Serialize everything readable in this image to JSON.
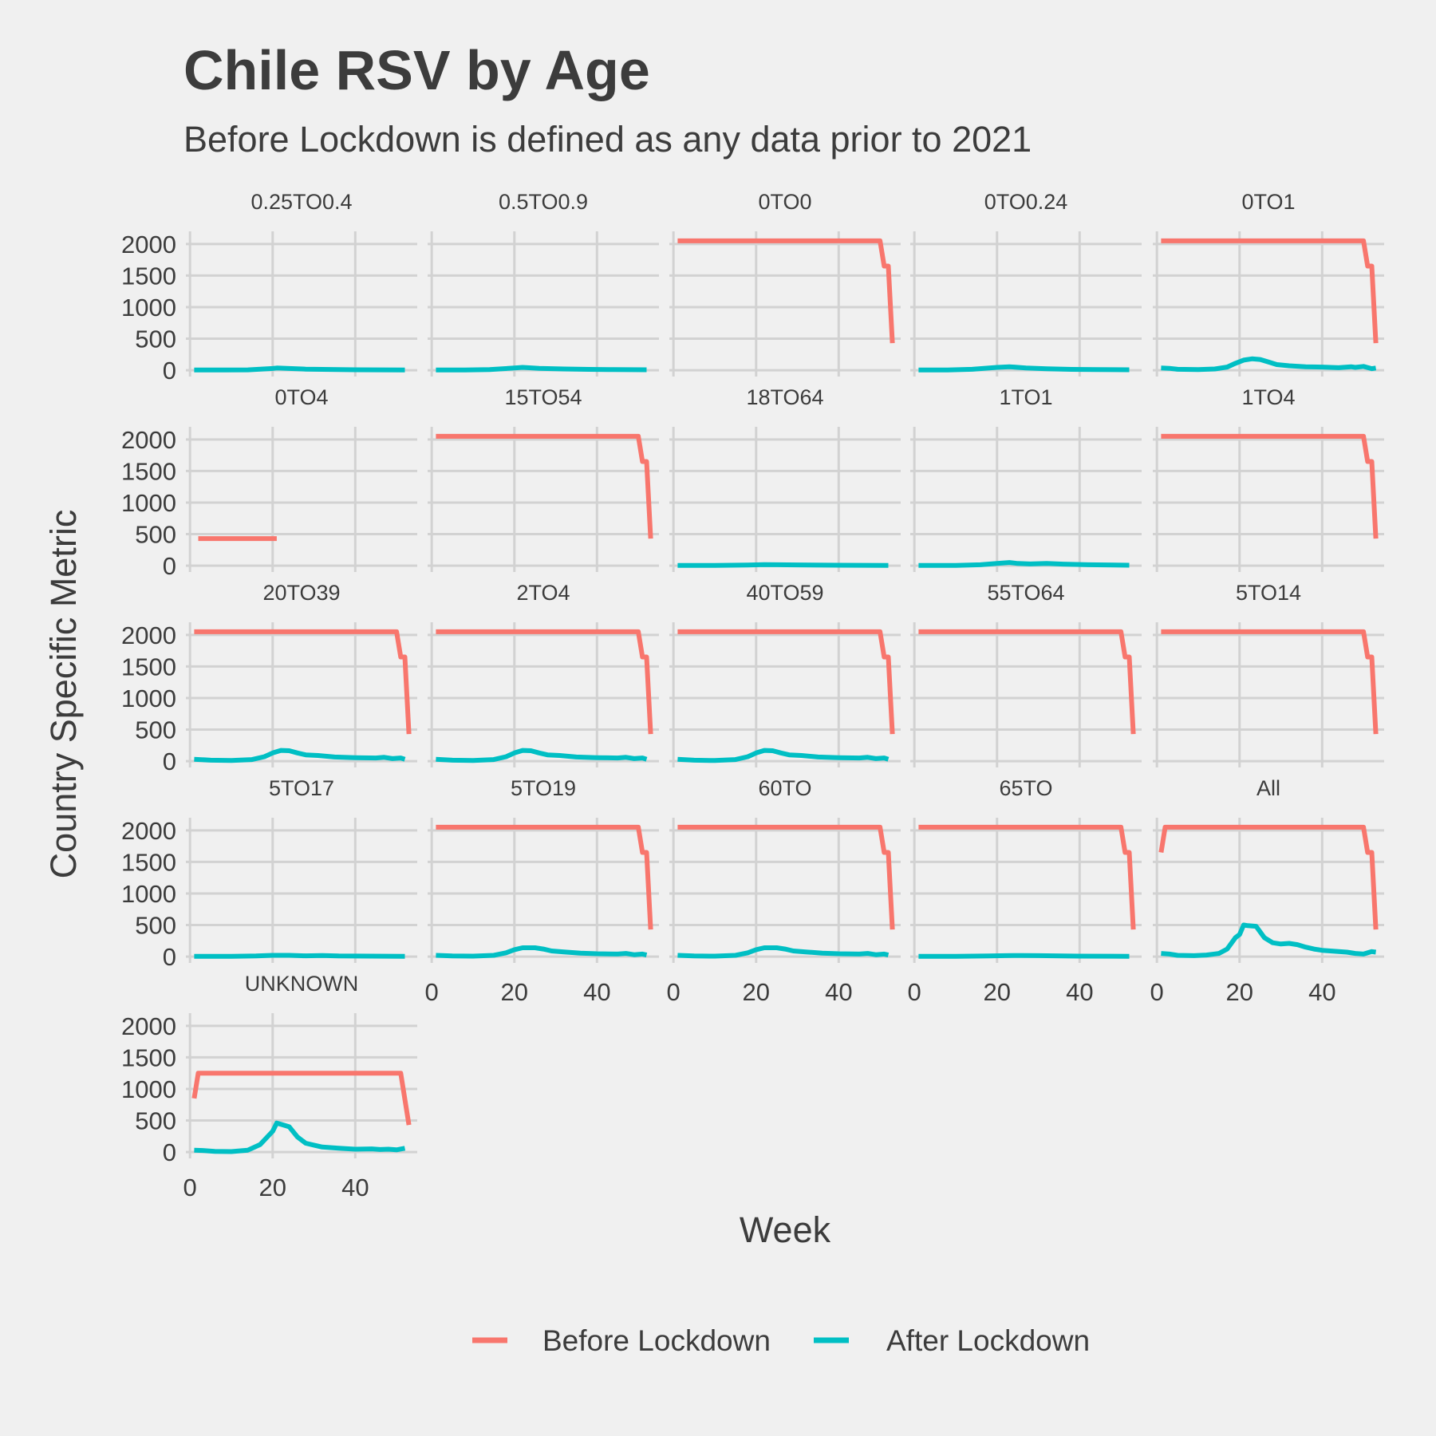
{
  "chart_data": {
    "type": "line",
    "title": "Chile RSV by Age",
    "subtitle": "Before Lockdown is defined as any data prior to 2021",
    "xlabel": "Week",
    "ylabel": "Country Specific Metric",
    "xlim": [
      -1,
      55
    ],
    "ylim": [
      -100,
      2200
    ],
    "x_ticks": [
      0,
      20,
      40
    ],
    "y_ticks": [
      0,
      500,
      1000,
      1500,
      2000
    ],
    "grid": true,
    "legend": {
      "position": "bottom",
      "entries": [
        {
          "name": "Before Lockdown",
          "color": "#f8766d"
        },
        {
          "name": "After Lockdown",
          "color": "#00bfc4"
        }
      ]
    },
    "panels": [
      {
        "label": "0.25TO0.4",
        "before": null,
        "after": [
          [
            1,
            5
          ],
          [
            8,
            3
          ],
          [
            14,
            6
          ],
          [
            20,
            28
          ],
          [
            21,
            35
          ],
          [
            24,
            28
          ],
          [
            28,
            18
          ],
          [
            34,
            12
          ],
          [
            40,
            8
          ],
          [
            46,
            6
          ],
          [
            52,
            5
          ]
        ]
      },
      {
        "label": "0.5TO0.9",
        "before": null,
        "after": [
          [
            1,
            5
          ],
          [
            8,
            3
          ],
          [
            14,
            10
          ],
          [
            20,
            35
          ],
          [
            22,
            45
          ],
          [
            26,
            30
          ],
          [
            32,
            20
          ],
          [
            38,
            14
          ],
          [
            44,
            10
          ],
          [
            52,
            8
          ]
        ]
      },
      {
        "label": "0TO0",
        "before": [
          [
            1,
            2050
          ],
          [
            50,
            2050
          ],
          [
            51,
            1650
          ],
          [
            52,
            1650
          ],
          [
            53,
            430
          ]
        ],
        "after": null
      },
      {
        "label": "0TO0.24",
        "before": null,
        "after": [
          [
            1,
            5
          ],
          [
            8,
            3
          ],
          [
            14,
            15
          ],
          [
            20,
            45
          ],
          [
            23,
            55
          ],
          [
            27,
            35
          ],
          [
            32,
            22
          ],
          [
            38,
            14
          ],
          [
            44,
            10
          ],
          [
            52,
            8
          ]
        ]
      },
      {
        "label": "0TO1",
        "before": [
          [
            1,
            2050
          ],
          [
            50,
            2050
          ],
          [
            51,
            1650
          ],
          [
            52,
            1650
          ],
          [
            53,
            430
          ]
        ],
        "after": [
          [
            1,
            35
          ],
          [
            3,
            30
          ],
          [
            5,
            15
          ],
          [
            10,
            10
          ],
          [
            14,
            20
          ],
          [
            17,
            50
          ],
          [
            19,
            110
          ],
          [
            21,
            160
          ],
          [
            23,
            180
          ],
          [
            25,
            170
          ],
          [
            27,
            130
          ],
          [
            29,
            90
          ],
          [
            32,
            70
          ],
          [
            36,
            55
          ],
          [
            40,
            50
          ],
          [
            44,
            40
          ],
          [
            47,
            55
          ],
          [
            48,
            45
          ],
          [
            50,
            60
          ],
          [
            52,
            25
          ],
          [
            53,
            35
          ]
        ]
      },
      {
        "label": "0TO4",
        "before": [
          [
            2,
            430
          ],
          [
            21,
            430
          ]
        ],
        "after": null
      },
      {
        "label": "15TO54",
        "before": [
          [
            1,
            2050
          ],
          [
            50,
            2050
          ],
          [
            51,
            1650
          ],
          [
            52,
            1650
          ],
          [
            53,
            430
          ]
        ],
        "after": null
      },
      {
        "label": "18TO64",
        "before": null,
        "after": [
          [
            1,
            5
          ],
          [
            10,
            5
          ],
          [
            18,
            10
          ],
          [
            22,
            18
          ],
          [
            25,
            15
          ],
          [
            30,
            12
          ],
          [
            40,
            8
          ],
          [
            52,
            5
          ]
        ]
      },
      {
        "label": "1TO1",
        "before": null,
        "after": [
          [
            1,
            5
          ],
          [
            10,
            5
          ],
          [
            16,
            15
          ],
          [
            20,
            35
          ],
          [
            23,
            50
          ],
          [
            25,
            35
          ],
          [
            28,
            28
          ],
          [
            32,
            35
          ],
          [
            36,
            25
          ],
          [
            42,
            15
          ],
          [
            52,
            8
          ]
        ]
      },
      {
        "label": "1TO4",
        "before": [
          [
            1,
            2050
          ],
          [
            50,
            2050
          ],
          [
            51,
            1650
          ],
          [
            52,
            1650
          ],
          [
            53,
            430
          ]
        ],
        "after": null
      },
      {
        "label": "20TO39",
        "before": [
          [
            1,
            2050
          ],
          [
            50,
            2050
          ],
          [
            51,
            1650
          ],
          [
            52,
            1650
          ],
          [
            53,
            430
          ]
        ],
        "after": [
          [
            1,
            30
          ],
          [
            5,
            15
          ],
          [
            10,
            10
          ],
          [
            15,
            25
          ],
          [
            18,
            70
          ],
          [
            20,
            130
          ],
          [
            22,
            170
          ],
          [
            24,
            165
          ],
          [
            26,
            130
          ],
          [
            28,
            100
          ],
          [
            31,
            90
          ],
          [
            35,
            65
          ],
          [
            40,
            55
          ],
          [
            45,
            50
          ],
          [
            47,
            60
          ],
          [
            49,
            40
          ],
          [
            51,
            50
          ],
          [
            52,
            30
          ]
        ]
      },
      {
        "label": "2TO4",
        "before": [
          [
            1,
            2050
          ],
          [
            50,
            2050
          ],
          [
            51,
            1650
          ],
          [
            52,
            1650
          ],
          [
            53,
            430
          ]
        ],
        "after": [
          [
            1,
            30
          ],
          [
            5,
            15
          ],
          [
            10,
            10
          ],
          [
            15,
            25
          ],
          [
            18,
            70
          ],
          [
            20,
            130
          ],
          [
            22,
            170
          ],
          [
            24,
            165
          ],
          [
            26,
            130
          ],
          [
            28,
            100
          ],
          [
            31,
            90
          ],
          [
            35,
            65
          ],
          [
            40,
            55
          ],
          [
            45,
            50
          ],
          [
            47,
            60
          ],
          [
            49,
            40
          ],
          [
            51,
            50
          ],
          [
            52,
            30
          ]
        ]
      },
      {
        "label": "40TO59",
        "before": [
          [
            1,
            2050
          ],
          [
            50,
            2050
          ],
          [
            51,
            1650
          ],
          [
            52,
            1650
          ],
          [
            53,
            430
          ]
        ],
        "after": [
          [
            1,
            30
          ],
          [
            5,
            15
          ],
          [
            10,
            10
          ],
          [
            15,
            25
          ],
          [
            18,
            70
          ],
          [
            20,
            130
          ],
          [
            22,
            170
          ],
          [
            24,
            165
          ],
          [
            26,
            130
          ],
          [
            28,
            100
          ],
          [
            31,
            90
          ],
          [
            35,
            65
          ],
          [
            40,
            55
          ],
          [
            45,
            50
          ],
          [
            47,
            60
          ],
          [
            49,
            40
          ],
          [
            51,
            50
          ],
          [
            52,
            30
          ]
        ]
      },
      {
        "label": "55TO64",
        "before": [
          [
            1,
            2050
          ],
          [
            50,
            2050
          ],
          [
            51,
            1650
          ],
          [
            52,
            1650
          ],
          [
            53,
            430
          ]
        ],
        "after": null
      },
      {
        "label": "5TO14",
        "before": [
          [
            1,
            2050
          ],
          [
            50,
            2050
          ],
          [
            51,
            1650
          ],
          [
            52,
            1650
          ],
          [
            53,
            430
          ]
        ],
        "after": null
      },
      {
        "label": "5TO17",
        "before": null,
        "after": [
          [
            1,
            5
          ],
          [
            10,
            5
          ],
          [
            16,
            10
          ],
          [
            20,
            20
          ],
          [
            24,
            20
          ],
          [
            28,
            12
          ],
          [
            32,
            18
          ],
          [
            36,
            10
          ],
          [
            44,
            8
          ],
          [
            52,
            5
          ]
        ]
      },
      {
        "label": "5TO19",
        "before": [
          [
            1,
            2050
          ],
          [
            50,
            2050
          ],
          [
            51,
            1650
          ],
          [
            52,
            1650
          ],
          [
            53,
            430
          ]
        ],
        "after": [
          [
            1,
            20
          ],
          [
            5,
            10
          ],
          [
            10,
            8
          ],
          [
            15,
            20
          ],
          [
            18,
            60
          ],
          [
            20,
            110
          ],
          [
            22,
            140
          ],
          [
            25,
            140
          ],
          [
            27,
            120
          ],
          [
            29,
            90
          ],
          [
            32,
            75
          ],
          [
            36,
            55
          ],
          [
            40,
            45
          ],
          [
            45,
            40
          ],
          [
            47,
            50
          ],
          [
            49,
            30
          ],
          [
            51,
            40
          ],
          [
            52,
            25
          ]
        ]
      },
      {
        "label": "60TO",
        "before": [
          [
            1,
            2050
          ],
          [
            50,
            2050
          ],
          [
            51,
            1650
          ],
          [
            52,
            1650
          ],
          [
            53,
            430
          ]
        ],
        "after": [
          [
            1,
            20
          ],
          [
            5,
            10
          ],
          [
            10,
            8
          ],
          [
            15,
            20
          ],
          [
            18,
            60
          ],
          [
            20,
            110
          ],
          [
            22,
            140
          ],
          [
            25,
            140
          ],
          [
            27,
            120
          ],
          [
            29,
            90
          ],
          [
            32,
            75
          ],
          [
            36,
            55
          ],
          [
            40,
            45
          ],
          [
            45,
            40
          ],
          [
            47,
            50
          ],
          [
            49,
            30
          ],
          [
            51,
            40
          ],
          [
            52,
            25
          ]
        ]
      },
      {
        "label": "65TO",
        "before": [
          [
            1,
            2050
          ],
          [
            50,
            2050
          ],
          [
            51,
            1650
          ],
          [
            52,
            1650
          ],
          [
            53,
            430
          ]
        ],
        "after": [
          [
            1,
            5
          ],
          [
            10,
            5
          ],
          [
            18,
            10
          ],
          [
            22,
            15
          ],
          [
            26,
            18
          ],
          [
            30,
            15
          ],
          [
            34,
            12
          ],
          [
            40,
            8
          ],
          [
            52,
            5
          ]
        ]
      },
      {
        "label": "All",
        "before": [
          [
            1,
            1650
          ],
          [
            2,
            2050
          ],
          [
            50,
            2050
          ],
          [
            51,
            1650
          ],
          [
            52,
            1650
          ],
          [
            53,
            430
          ]
        ],
        "after": [
          [
            1,
            50
          ],
          [
            3,
            40
          ],
          [
            5,
            20
          ],
          [
            9,
            15
          ],
          [
            12,
            25
          ],
          [
            15,
            50
          ],
          [
            17,
            120
          ],
          [
            19,
            300
          ],
          [
            20,
            350
          ],
          [
            21,
            500
          ],
          [
            22,
            490
          ],
          [
            24,
            480
          ],
          [
            26,
            300
          ],
          [
            28,
            220
          ],
          [
            30,
            200
          ],
          [
            32,
            210
          ],
          [
            34,
            190
          ],
          [
            36,
            150
          ],
          [
            38,
            120
          ],
          [
            40,
            100
          ],
          [
            42,
            90
          ],
          [
            44,
            80
          ],
          [
            46,
            70
          ],
          [
            48,
            50
          ],
          [
            50,
            40
          ],
          [
            52,
            80
          ],
          [
            53,
            70
          ]
        ]
      },
      {
        "label": "UNKNOWN",
        "before": [
          [
            1,
            850
          ],
          [
            2,
            1250
          ],
          [
            51,
            1250
          ],
          [
            53,
            430
          ]
        ],
        "after": [
          [
            1,
            30
          ],
          [
            3,
            25
          ],
          [
            6,
            10
          ],
          [
            10,
            8
          ],
          [
            14,
            30
          ],
          [
            17,
            120
          ],
          [
            19,
            260
          ],
          [
            20,
            330
          ],
          [
            21,
            460
          ],
          [
            22,
            440
          ],
          [
            24,
            400
          ],
          [
            26,
            240
          ],
          [
            28,
            140
          ],
          [
            30,
            110
          ],
          [
            32,
            80
          ],
          [
            36,
            60
          ],
          [
            40,
            45
          ],
          [
            44,
            50
          ],
          [
            46,
            40
          ],
          [
            48,
            45
          ],
          [
            50,
            35
          ],
          [
            52,
            60
          ]
        ]
      }
    ]
  }
}
